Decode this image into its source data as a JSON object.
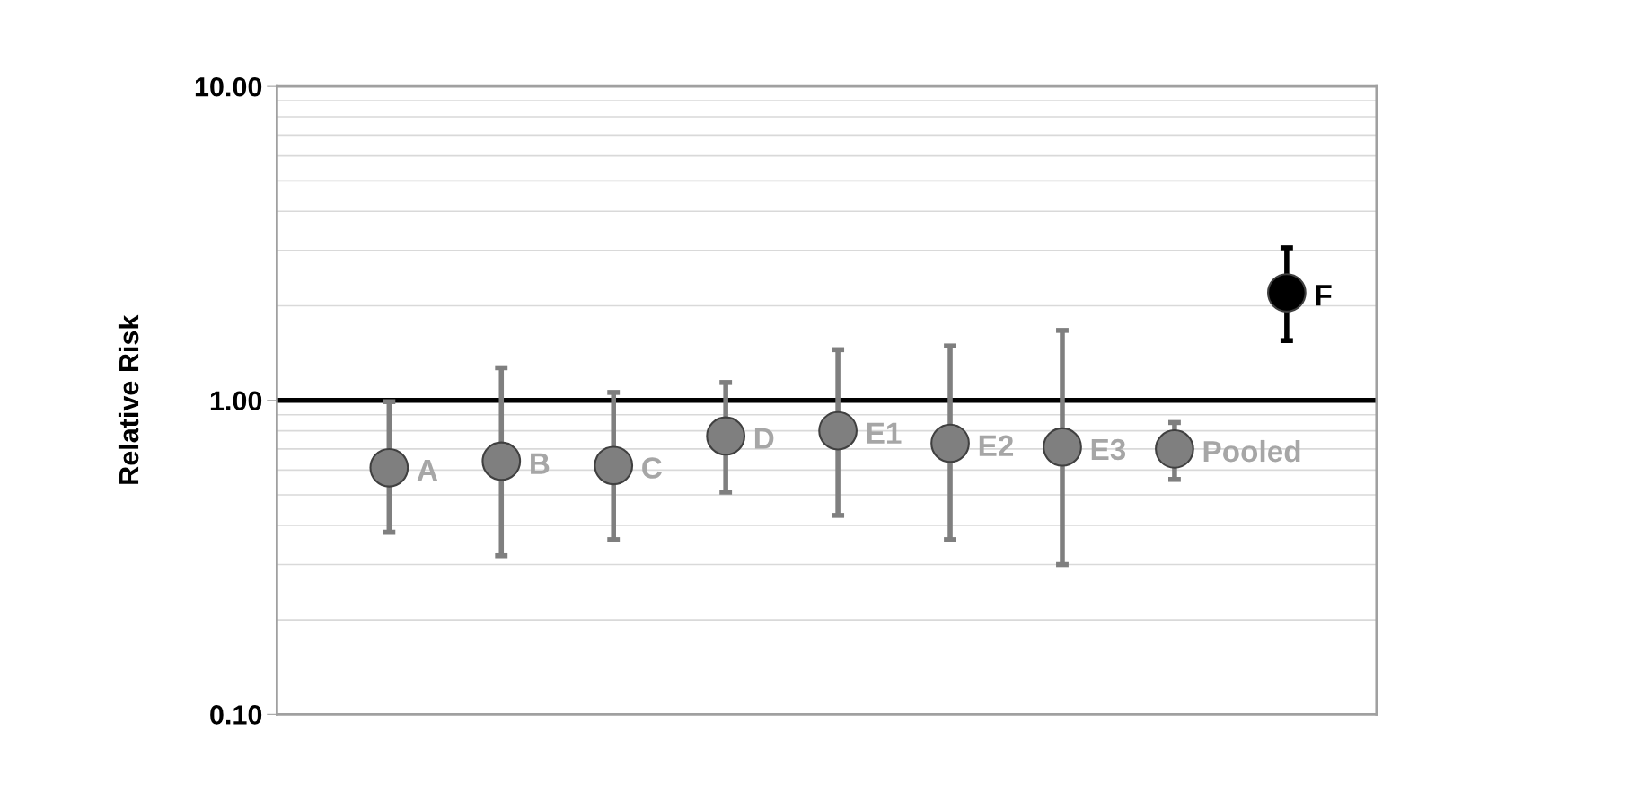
{
  "chart_data": {
    "type": "scatter",
    "ylabel": "Relative Risk",
    "log": "y",
    "grid": true,
    "marker": "circle",
    "legend": false,
    "tick_labels": "y",
    "categories": [
      null,
      null,
      null,
      null,
      null,
      null,
      null,
      null,
      null
    ],
    "ylim": [
      0.1,
      10
    ],
    "yticks": [
      {
        "value": 0.1,
        "label": "0.10"
      },
      {
        "value": 1,
        "label": "1.00"
      },
      {
        "value": 10,
        "label": "10.00"
      }
    ],
    "series": [
      {
        "name": "A",
        "color": "#7f7f7f",
        "values": [
          0.61,
          null,
          null,
          null,
          null,
          null,
          null,
          null,
          null
        ],
        "errors": [
          [
            0.38,
            0.99
          ],
          null,
          null,
          null,
          null,
          null,
          null,
          null,
          null
        ]
      },
      {
        "name": "B",
        "color": "#7f7f7f",
        "values": [
          null,
          0.64,
          null,
          null,
          null,
          null,
          null,
          null,
          null
        ],
        "errors": [
          null,
          [
            0.32,
            1.27
          ],
          null,
          null,
          null,
          null,
          null,
          null,
          null
        ]
      },
      {
        "name": "C",
        "color": "#7f7f7f",
        "values": [
          null,
          null,
          0.62,
          null,
          null,
          null,
          null,
          null,
          null
        ],
        "errors": [
          null,
          null,
          [
            0.36,
            1.06
          ],
          null,
          null,
          null,
          null,
          null,
          null
        ]
      },
      {
        "name": "D",
        "color": "#7f7f7f",
        "values": [
          null,
          null,
          null,
          0.77,
          null,
          null,
          null,
          null,
          null
        ],
        "errors": [
          null,
          null,
          null,
          [
            0.51,
            1.14
          ],
          null,
          null,
          null,
          null,
          null
        ]
      },
      {
        "name": "E1",
        "color": "#7f7f7f",
        "values": [
          null,
          null,
          null,
          null,
          0.8,
          null,
          null,
          null,
          null
        ],
        "errors": [
          null,
          null,
          null,
          null,
          [
            0.43,
            1.45
          ],
          null,
          null,
          null,
          null
        ]
      },
      {
        "name": "E2",
        "color": "#7f7f7f",
        "values": [
          null,
          null,
          null,
          null,
          null,
          0.73,
          null,
          null,
          null
        ],
        "errors": [
          null,
          null,
          null,
          null,
          null,
          [
            0.36,
            1.49
          ],
          null,
          null,
          null
        ]
      },
      {
        "name": "E3",
        "color": "#7f7f7f",
        "values": [
          null,
          null,
          null,
          null,
          null,
          null,
          0.71,
          null,
          null
        ],
        "errors": [
          null,
          null,
          null,
          null,
          null,
          null,
          [
            0.3,
            1.67
          ],
          null,
          null
        ]
      },
      {
        "name": "Pooled",
        "color": "#7f7f7f",
        "values": [
          null,
          null,
          null,
          null,
          null,
          null,
          null,
          0.7,
          null
        ],
        "errors": [
          null,
          null,
          null,
          null,
          null,
          null,
          null,
          [
            0.56,
            0.85
          ],
          null
        ]
      },
      {
        "name": "F",
        "color": "#000000",
        "values": [
          null,
          null,
          null,
          null,
          null,
          null,
          null,
          null,
          2.2
        ],
        "errors": [
          null,
          null,
          null,
          null,
          null,
          null,
          null,
          null,
          [
            1.55,
            3.06
          ]
        ]
      }
    ],
    "ref_lines": [
      {
        "axis": "y",
        "value": 1,
        "color": "#000000",
        "line_style": "solid"
      }
    ]
  }
}
